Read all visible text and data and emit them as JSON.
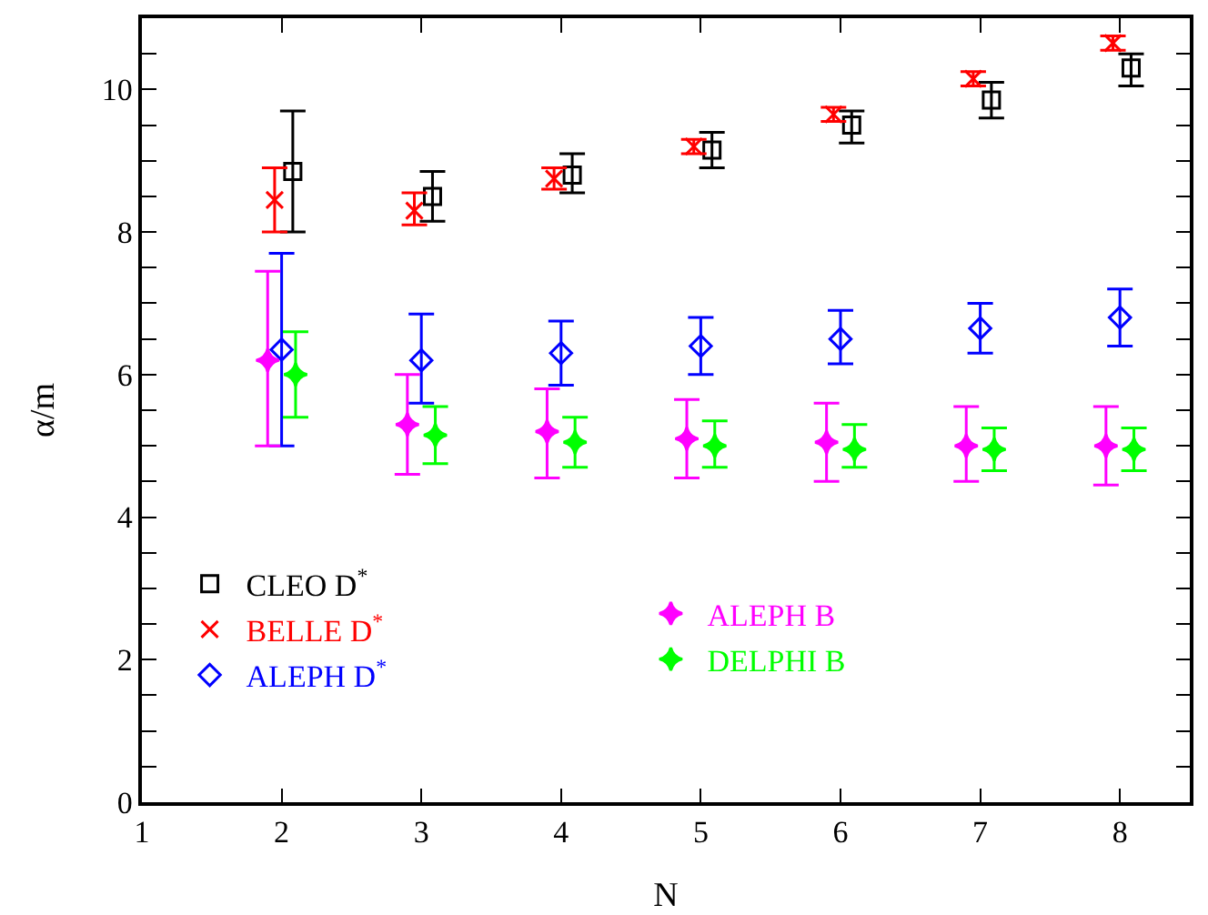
{
  "chart_data": {
    "type": "scatter",
    "xlabel": "N",
    "ylabel": "α/m",
    "xlim": [
      1,
      8.5
    ],
    "ylim": [
      0,
      11
    ],
    "xticks": [
      1,
      2,
      3,
      4,
      5,
      6,
      7,
      8
    ],
    "yticks": [
      0,
      {
        "value": 0.5,
        "label": null
      },
      2,
      {
        "value": 1,
        "label": null
      },
      {
        "value": 1.5,
        "label": null
      },
      {
        "value": 2.5,
        "label": null
      },
      {
        "value": 3,
        "label": null
      },
      {
        "value": 3.5,
        "label": null
      },
      4,
      {
        "value": 4.5,
        "label": null
      },
      {
        "value": 5,
        "label": null
      },
      {
        "value": 5.5,
        "label": null
      },
      6,
      {
        "value": 6.5,
        "label": null
      },
      {
        "value": 7,
        "label": null
      },
      {
        "value": 7.5,
        "label": null
      },
      8,
      {
        "value": 8.5,
        "label": null
      },
      {
        "value": 9,
        "label": null
      },
      {
        "value": 9.5,
        "label": null
      },
      10,
      {
        "value": 10.5,
        "label": null
      }
    ],
    "grid": false,
    "legend": "bottom left",
    "series": [
      {
        "name": "CLEO D$^{*}$",
        "color": "#000000",
        "marker": "square",
        "x": [
          2.08,
          3.08,
          4.08,
          5.08,
          6.08,
          7.08,
          8.08
        ],
        "values": [
          8.85,
          8.5,
          8.8,
          9.15,
          9.5,
          9.85,
          10.3
        ],
        "errors": [
          [
            8.0,
            9.7
          ],
          [
            8.15,
            8.85
          ],
          [
            8.55,
            9.1
          ],
          [
            8.9,
            9.4
          ],
          [
            9.25,
            9.7
          ],
          [
            9.6,
            10.1
          ],
          [
            10.05,
            10.5
          ]
        ]
      },
      {
        "name": "BELLE D$^{*}$",
        "color": "#ff0000",
        "marker": "cross",
        "x": [
          1.95,
          2.95,
          3.95,
          4.95,
          5.95,
          6.95,
          7.95
        ],
        "values": [
          8.45,
          8.3,
          8.75,
          9.2,
          9.65,
          10.15,
          10.65
        ],
        "errors": [
          [
            8.0,
            8.9
          ],
          [
            8.1,
            8.55
          ],
          [
            8.6,
            8.9
          ],
          [
            9.1,
            9.3
          ],
          [
            9.55,
            9.75
          ],
          [
            10.05,
            10.25
          ],
          [
            10.55,
            10.75
          ]
        ]
      },
      {
        "name": "ALEPH D$^{*}$",
        "color": "#0000ff",
        "marker": "diamond",
        "x": [
          2,
          3,
          4,
          5,
          6,
          7,
          8
        ],
        "values": [
          6.35,
          6.2,
          6.3,
          6.4,
          6.5,
          6.65,
          6.8
        ],
        "errors": [
          [
            5.0,
            7.7
          ],
          [
            5.6,
            6.85
          ],
          [
            5.85,
            6.75
          ],
          [
            6.0,
            6.8
          ],
          [
            6.15,
            6.9
          ],
          [
            6.3,
            7.0
          ],
          [
            6.4,
            7.2
          ]
        ]
      },
      {
        "name": "ALEPH B",
        "color": "#ff00ff",
        "marker": "star",
        "x": [
          1.9,
          2.9,
          3.9,
          4.9,
          5.9,
          6.9,
          7.9
        ],
        "values": [
          6.2,
          5.3,
          5.2,
          5.1,
          5.05,
          5.0,
          5.0
        ],
        "errors": [
          [
            5.0,
            7.45
          ],
          [
            4.6,
            6.0
          ],
          [
            4.55,
            5.8
          ],
          [
            4.55,
            5.65
          ],
          [
            4.5,
            5.6
          ],
          [
            4.5,
            5.55
          ],
          [
            4.45,
            5.55
          ]
        ]
      },
      {
        "name": "DELPHI B",
        "color": "#00ff00",
        "marker": "star",
        "x": [
          2.1,
          3.1,
          4.1,
          5.1,
          6.1,
          7.1,
          8.1
        ],
        "values": [
          6.0,
          5.15,
          5.05,
          5.0,
          4.95,
          4.95,
          4.95
        ],
        "errors": [
          [
            5.4,
            6.6
          ],
          [
            4.75,
            5.55
          ],
          [
            4.7,
            5.4
          ],
          [
            4.7,
            5.35
          ],
          [
            4.7,
            5.3
          ],
          [
            4.65,
            5.25
          ],
          [
            4.65,
            5.25
          ]
        ]
      }
    ]
  }
}
